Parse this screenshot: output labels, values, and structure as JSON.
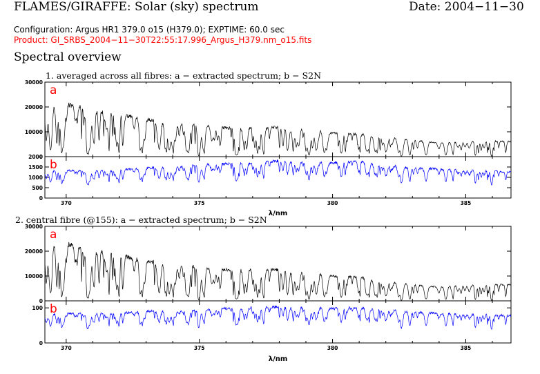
{
  "header": {
    "title": "FLAMES/GIRAFFE: Solar (sky) spectrum",
    "date": "Date: 2004−11−30",
    "configuration": "Configuration: Argus HR1 379.0 o15 (H379.0); EXPTIME: 60.0 sec",
    "product": "Product: GI_SRBS_2004−11−30T22:55:17.996_Argus_H379.nm_o15.fits",
    "section_heading": "Spectral overview"
  },
  "colors": {
    "spectrum": "#000000",
    "s2n": "#0000ff",
    "panel_letter": "#ff0000",
    "product_text": "#ff0000"
  },
  "chart_data": [
    {
      "type": "line",
      "title": "1. averaged across all fibres: a − extracted spectrum; b − S2N",
      "xlabel": "λ/nm",
      "xlim": [
        369.2,
        386.7
      ],
      "x_ticks": [
        370,
        375,
        380,
        385
      ],
      "panels": [
        {
          "letter": "a",
          "series": "extracted spectrum",
          "ylim": [
            0,
            30000
          ],
          "y_ticks": [
            0,
            10000,
            20000,
            30000
          ],
          "trend_x": [
            369.2,
            370,
            371,
            372,
            373,
            374,
            375,
            376,
            377,
            378,
            379,
            380,
            381,
            382,
            383,
            384,
            385,
            386,
            386.7
          ],
          "trend_y": [
            19000,
            21000,
            18500,
            17000,
            15000,
            13500,
            12500,
            11500,
            11500,
            11800,
            11000,
            9500,
            9000,
            8000,
            6500,
            5500,
            6000,
            6200,
            6000
          ]
        },
        {
          "letter": "b",
          "series": "S2N",
          "ylim": [
            0,
            2000
          ],
          "y_ticks": [
            0,
            500,
            1000,
            1500,
            2000
          ],
          "trend_x": [
            369.2,
            370,
            371,
            372,
            373,
            374,
            375,
            376,
            377,
            378,
            379,
            380,
            381,
            382,
            383,
            384,
            385,
            386,
            386.7
          ],
          "trend_y": [
            1300,
            1350,
            1300,
            1350,
            1450,
            1500,
            1600,
            1650,
            1700,
            1800,
            1750,
            1700,
            1750,
            1600,
            1450,
            1400,
            1350,
            1300,
            1250
          ]
        }
      ]
    },
    {
      "type": "line",
      "title": "2. central fibre (@155): a − extracted spectrum; b − S2N",
      "xlabel": "λ/nm",
      "xlim": [
        369.2,
        386.7
      ],
      "x_ticks": [
        370,
        375,
        380,
        385
      ],
      "panels": [
        {
          "letter": "a",
          "series": "extracted spectrum",
          "ylim": [
            0,
            30000
          ],
          "y_ticks": [
            0,
            10000,
            20000,
            30000
          ],
          "trend_x": [
            369.2,
            370,
            371,
            372,
            373,
            374,
            375,
            376,
            377,
            378,
            379,
            380,
            381,
            382,
            383,
            384,
            385,
            386,
            386.7
          ],
          "trend_y": [
            21000,
            23000,
            20000,
            18500,
            16000,
            14500,
            13500,
            12500,
            12500,
            12500,
            11500,
            10000,
            9500,
            8000,
            6500,
            5500,
            6500,
            6500,
            6500
          ]
        },
        {
          "letter": "b",
          "series": "S2N",
          "ylim": [
            0,
            120
          ],
          "y_ticks": [
            0,
            100
          ],
          "trend_x": [
            369.2,
            370,
            371,
            372,
            373,
            374,
            375,
            376,
            377,
            378,
            379,
            380,
            381,
            382,
            383,
            384,
            385,
            386,
            386.7
          ],
          "trend_y": [
            80,
            85,
            82,
            85,
            90,
            92,
            95,
            98,
            100,
            103,
            100,
            98,
            100,
            95,
            88,
            85,
            82,
            80,
            78
          ]
        }
      ]
    }
  ]
}
